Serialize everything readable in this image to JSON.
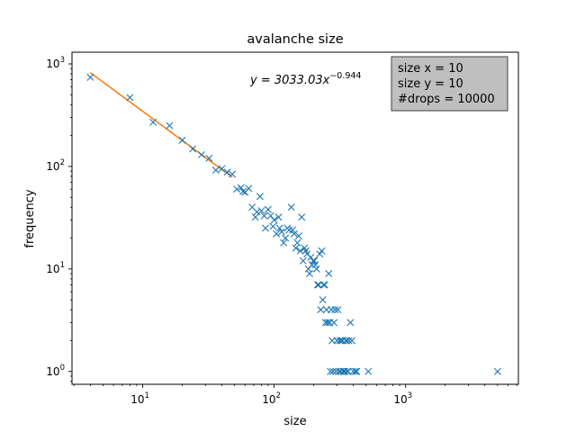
{
  "chart_data": {
    "type": "scatter",
    "title": "avalanche size",
    "xlabel": "size",
    "ylabel": "frequency",
    "xscale": "log",
    "yscale": "log",
    "xlim": [
      2.9,
      7200
    ],
    "ylim": [
      0.75,
      1300
    ],
    "grid": false,
    "x_ticks": [
      {
        "base": "10",
        "exp": "1",
        "value": 10
      },
      {
        "base": "10",
        "exp": "2",
        "value": 100
      },
      {
        "base": "10",
        "exp": "3",
        "value": 1000
      }
    ],
    "y_ticks": [
      {
        "base": "10",
        "exp": "0",
        "value": 1
      },
      {
        "base": "10",
        "exp": "1",
        "value": 10
      },
      {
        "base": "10",
        "exp": "2",
        "value": 100
      },
      {
        "base": "10",
        "exp": "3",
        "value": 1000
      }
    ],
    "fit_equation": {
      "lhs": "y = 3033.03",
      "var": "x",
      "exp": "−0.944"
    },
    "info_box": {
      "placement": "top-right",
      "lines": [
        "size x = 10",
        "size y = 10",
        "#drops = 10000"
      ]
    },
    "series": [
      {
        "marker": "x",
        "color": "#1f77b4",
        "points": [
          [
            4,
            740
          ],
          [
            8,
            470
          ],
          [
            12,
            270
          ],
          [
            16,
            250
          ],
          [
            20,
            180
          ],
          [
            24,
            148
          ],
          [
            28,
            130
          ],
          [
            32,
            120
          ],
          [
            36,
            92
          ],
          [
            40,
            95
          ],
          [
            44,
            88
          ],
          [
            48,
            84
          ],
          [
            52,
            60
          ],
          [
            56,
            62
          ],
          [
            58,
            57
          ],
          [
            60,
            56
          ],
          [
            64,
            61
          ],
          [
            68,
            40
          ],
          [
            72,
            32
          ],
          [
            74,
            36
          ],
          [
            78,
            51
          ],
          [
            80,
            37
          ],
          [
            84,
            33
          ],
          [
            86,
            25
          ],
          [
            90,
            38
          ],
          [
            94,
            33
          ],
          [
            98,
            26
          ],
          [
            100,
            30
          ],
          [
            104,
            22
          ],
          [
            108,
            32
          ],
          [
            110,
            25
          ],
          [
            114,
            23
          ],
          [
            118,
            18
          ],
          [
            122,
            20
          ],
          [
            126,
            25
          ],
          [
            130,
            24
          ],
          [
            135,
            40
          ],
          [
            138,
            24
          ],
          [
            142,
            22
          ],
          [
            146,
            16
          ],
          [
            150,
            18
          ],
          [
            154,
            21
          ],
          [
            158,
            15
          ],
          [
            162,
            32
          ],
          [
            166,
            12
          ],
          [
            170,
            16
          ],
          [
            174,
            15
          ],
          [
            178,
            14
          ],
          [
            182,
            10
          ],
          [
            186,
            9
          ],
          [
            190,
            13
          ],
          [
            194,
            11
          ],
          [
            198,
            12
          ],
          [
            202,
            12
          ],
          [
            206,
            11
          ],
          [
            210,
            10
          ],
          [
            214,
            7
          ],
          [
            218,
            7
          ],
          [
            222,
            14
          ],
          [
            226,
            4
          ],
          [
            230,
            15
          ],
          [
            234,
            5
          ],
          [
            238,
            7
          ],
          [
            242,
            7
          ],
          [
            246,
            3
          ],
          [
            250,
            4
          ],
          [
            255,
            3
          ],
          [
            260,
            9
          ],
          [
            264,
            3
          ],
          [
            268,
            1
          ],
          [
            272,
            4
          ],
          [
            276,
            2
          ],
          [
            280,
            1
          ],
          [
            285,
            3
          ],
          [
            290,
            4
          ],
          [
            295,
            1
          ],
          [
            300,
            2
          ],
          [
            305,
            4
          ],
          [
            310,
            1
          ],
          [
            315,
            2
          ],
          [
            320,
            1
          ],
          [
            325,
            2
          ],
          [
            330,
            2
          ],
          [
            335,
            1
          ],
          [
            340,
            1
          ],
          [
            345,
            1
          ],
          [
            350,
            2
          ],
          [
            355,
            2
          ],
          [
            360,
            1
          ],
          [
            365,
            1
          ],
          [
            370,
            2
          ],
          [
            380,
            3
          ],
          [
            390,
            2
          ],
          [
            400,
            1
          ],
          [
            415,
            1
          ],
          [
            425,
            1
          ],
          [
            520,
            1
          ],
          [
            5000,
            1
          ]
        ]
      },
      {
        "type": "line",
        "color": "#ff7f0e",
        "function": {
          "coef": 3033.03,
          "power": -0.944
        },
        "x_range": [
          4,
          48
        ]
      }
    ]
  }
}
